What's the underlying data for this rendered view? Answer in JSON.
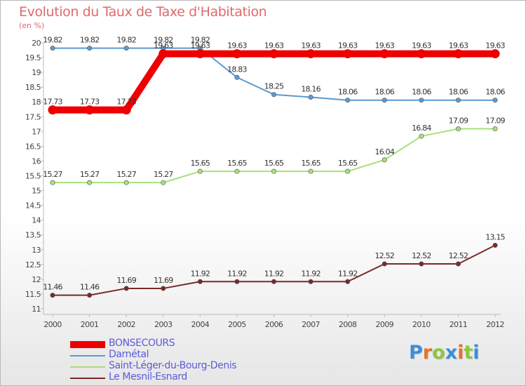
{
  "chart_data": {
    "type": "line",
    "title": "Evolution du Taux de Taxe d'Habitation",
    "subtitle": "(en %)",
    "x": [
      "2000",
      "2001",
      "2002",
      "2003",
      "2004",
      "2005",
      "2006",
      "2007",
      "2008",
      "2009",
      "2010",
      "2011",
      "2012"
    ],
    "ylim": [
      11,
      20
    ],
    "yticks": [
      "11",
      "11.5",
      "12",
      "12.5",
      "13",
      "13.5",
      "14",
      "14.5",
      "15",
      "15.5",
      "16",
      "16.5",
      "17",
      "17.5",
      "18",
      "18.5",
      "19",
      "19.5",
      "20"
    ],
    "grid": false,
    "legend_position": "bottom-left",
    "series": [
      {
        "name": "BONSECOURS",
        "color": "#ee0000",
        "values": [
          17.73,
          17.73,
          17.73,
          19.63,
          19.63,
          19.63,
          19.63,
          19.63,
          19.63,
          19.63,
          19.63,
          19.63,
          19.63
        ],
        "labels": [
          "17.73",
          "17.73",
          "17.73",
          "19.63",
          "19.63",
          "19.63",
          "19.63",
          "19.63",
          "19.63",
          "19.63",
          "19.63",
          "19.63",
          "19.63"
        ]
      },
      {
        "name": "Darnétal",
        "color": "#5a9bd0",
        "values": [
          19.82,
          19.82,
          19.82,
          19.82,
          19.82,
          18.83,
          18.25,
          18.16,
          18.06,
          18.06,
          18.06,
          18.06,
          18.06
        ],
        "labels": [
          "19.82",
          "19.82",
          "19.82",
          "19.82",
          "19.82",
          "18.83",
          "18.25",
          "18.16",
          "18.06",
          "18.06",
          "18.06",
          "18.06",
          "18.06"
        ]
      },
      {
        "name": "Saint-Léger-du-Bourg-Denis",
        "color": "#a8e07a",
        "values": [
          15.27,
          15.27,
          15.27,
          15.27,
          15.65,
          15.65,
          15.65,
          15.65,
          15.65,
          16.04,
          16.84,
          17.09,
          17.09
        ],
        "labels": [
          "15.27",
          "15.27",
          "15.27",
          "15.27",
          "15.65",
          "15.65",
          "15.65",
          "15.65",
          "15.65",
          "16.04",
          "16.84",
          "17.09",
          "17.09"
        ]
      },
      {
        "name": "Le Mesnil-Esnard",
        "color": "#7a2a2a",
        "values": [
          11.46,
          11.46,
          11.69,
          11.69,
          11.92,
          11.92,
          11.92,
          11.92,
          11.92,
          12.52,
          12.52,
          12.52,
          13.15
        ],
        "labels": [
          "11.46",
          "11.46",
          "11.69",
          "11.69",
          "11.92",
          "11.92",
          "11.92",
          "11.92",
          "11.92",
          "12.52",
          "12.52",
          "12.52",
          "13.15"
        ]
      }
    ]
  },
  "logo": {
    "text": "Proxiti",
    "colors": [
      "#3a8fd8",
      "#e8702a",
      "#8cc63f",
      "#3a8fd8",
      "#e8702a",
      "#8cc63f",
      "#3a8fd8"
    ]
  }
}
